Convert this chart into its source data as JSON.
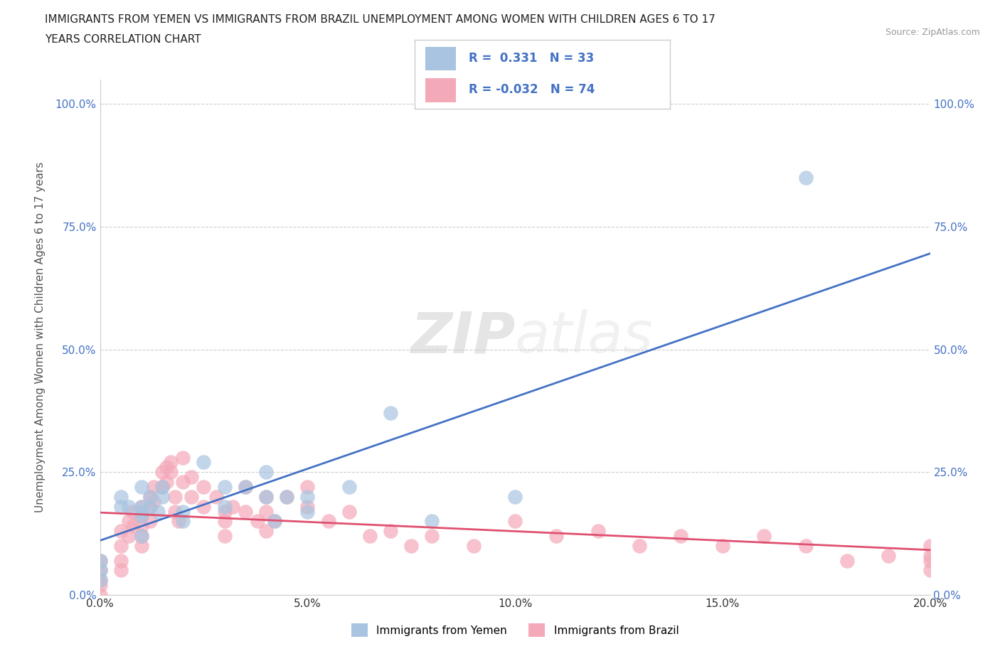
{
  "title_line1": "IMMIGRANTS FROM YEMEN VS IMMIGRANTS FROM BRAZIL UNEMPLOYMENT AMONG WOMEN WITH CHILDREN AGES 6 TO 17",
  "title_line2": "YEARS CORRELATION CHART",
  "source": "Source: ZipAtlas.com",
  "ylabel": "Unemployment Among Women with Children Ages 6 to 17 years",
  "xlim": [
    0.0,
    0.2
  ],
  "ylim": [
    0.0,
    1.05
  ],
  "x_ticks": [
    0.0,
    0.05,
    0.1,
    0.15,
    0.2
  ],
  "x_tick_labels": [
    "0.0%",
    "5.0%",
    "10.0%",
    "15.0%",
    "20.0%"
  ],
  "y_ticks": [
    0.0,
    0.25,
    0.5,
    0.75,
    1.0
  ],
  "y_tick_labels": [
    "0.0%",
    "25.0%",
    "50.0%",
    "75.0%",
    "100.0%"
  ],
  "r_yemen": 0.331,
  "n_yemen": 33,
  "r_brazil": -0.032,
  "n_brazil": 74,
  "color_yemen": "#a8c4e0",
  "color_brazil": "#f4a9b8",
  "line_color_yemen": "#4472c4",
  "line_color_brazil": "#e05070",
  "watermark_zip": "ZIP",
  "watermark_atlas": "atlas",
  "yemen_x": [
    0.0,
    0.0,
    0.0,
    0.005,
    0.005,
    0.007,
    0.01,
    0.01,
    0.01,
    0.01,
    0.01,
    0.012,
    0.012,
    0.014,
    0.015,
    0.015,
    0.02,
    0.02,
    0.025,
    0.03,
    0.03,
    0.035,
    0.04,
    0.04,
    0.042,
    0.045,
    0.05,
    0.05,
    0.06,
    0.07,
    0.08,
    0.1,
    0.17
  ],
  "yemen_y": [
    0.05,
    0.07,
    0.03,
    0.18,
    0.2,
    0.18,
    0.17,
    0.22,
    0.18,
    0.16,
    0.12,
    0.2,
    0.18,
    0.17,
    0.22,
    0.2,
    0.17,
    0.15,
    0.27,
    0.22,
    0.18,
    0.22,
    0.25,
    0.2,
    0.15,
    0.2,
    0.2,
    0.17,
    0.22,
    0.37,
    0.15,
    0.2,
    0.85
  ],
  "brazil_x": [
    0.0,
    0.0,
    0.0,
    0.0,
    0.0,
    0.005,
    0.005,
    0.005,
    0.005,
    0.007,
    0.007,
    0.008,
    0.008,
    0.01,
    0.01,
    0.01,
    0.01,
    0.01,
    0.012,
    0.012,
    0.012,
    0.013,
    0.013,
    0.015,
    0.015,
    0.016,
    0.016,
    0.017,
    0.017,
    0.018,
    0.018,
    0.019,
    0.02,
    0.02,
    0.022,
    0.022,
    0.025,
    0.025,
    0.028,
    0.03,
    0.03,
    0.03,
    0.032,
    0.035,
    0.035,
    0.038,
    0.04,
    0.04,
    0.04,
    0.042,
    0.045,
    0.05,
    0.05,
    0.055,
    0.06,
    0.065,
    0.07,
    0.075,
    0.08,
    0.09,
    0.1,
    0.11,
    0.12,
    0.13,
    0.14,
    0.15,
    0.16,
    0.17,
    0.18,
    0.19,
    0.2,
    0.2,
    0.2,
    0.2
  ],
  "brazil_y": [
    0.05,
    0.07,
    0.03,
    0.02,
    0.0,
    0.13,
    0.1,
    0.07,
    0.05,
    0.15,
    0.12,
    0.17,
    0.14,
    0.18,
    0.16,
    0.14,
    0.12,
    0.1,
    0.2,
    0.18,
    0.15,
    0.22,
    0.19,
    0.25,
    0.22,
    0.26,
    0.23,
    0.27,
    0.25,
    0.2,
    0.17,
    0.15,
    0.28,
    0.23,
    0.24,
    0.2,
    0.22,
    0.18,
    0.2,
    0.17,
    0.15,
    0.12,
    0.18,
    0.22,
    0.17,
    0.15,
    0.2,
    0.17,
    0.13,
    0.15,
    0.2,
    0.22,
    0.18,
    0.15,
    0.17,
    0.12,
    0.13,
    0.1,
    0.12,
    0.1,
    0.15,
    0.12,
    0.13,
    0.1,
    0.12,
    0.1,
    0.12,
    0.1,
    0.07,
    0.08,
    0.07,
    0.05,
    0.1,
    0.08
  ]
}
